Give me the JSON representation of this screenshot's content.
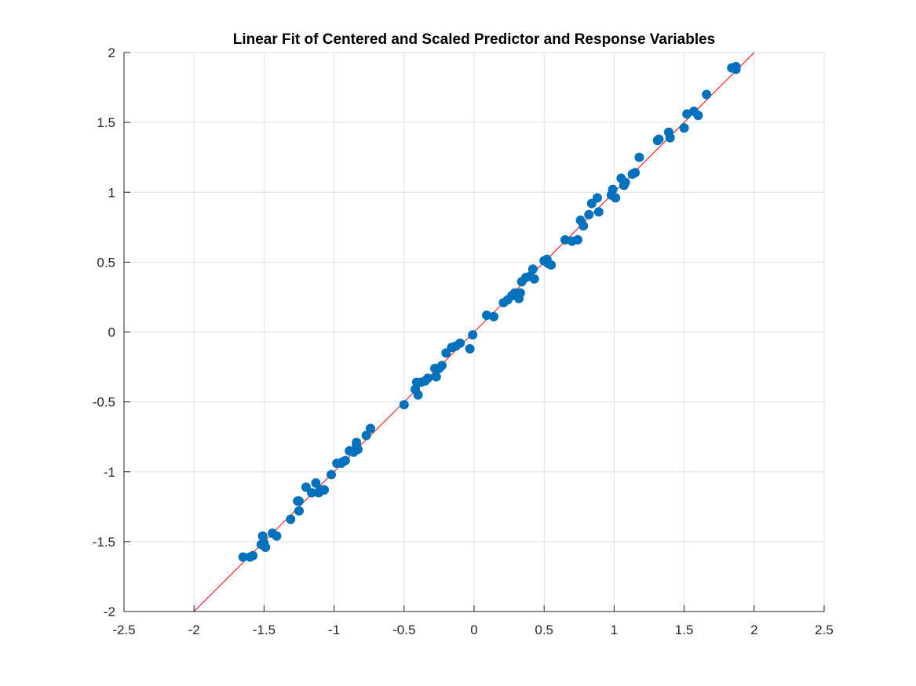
{
  "chart_data": {
    "type": "scatter",
    "title": "Linear Fit of Centered and Scaled Predictor and Response Variables",
    "xlabel": "",
    "ylabel": "",
    "xlim": [
      -2.5,
      2.5
    ],
    "ylim": [
      -2,
      2
    ],
    "xticks": [
      -2.5,
      -2,
      -1.5,
      -1,
      -0.5,
      0,
      0.5,
      1,
      1.5,
      2,
      2.5
    ],
    "xtick_labels": [
      "-2.5",
      "-2",
      "-1.5",
      "-1",
      "-0.5",
      "0",
      "0.5",
      "1",
      "1.5",
      "2",
      "2.5"
    ],
    "yticks": [
      -2,
      -1.5,
      -1,
      -0.5,
      0,
      0.5,
      1,
      1.5,
      2
    ],
    "ytick_labels": [
      "-2",
      "-1.5",
      "-1",
      "-0.5",
      "0",
      "0.5",
      "1",
      "1.5",
      "2"
    ],
    "grid": true,
    "colors": {
      "points": "#0072BD",
      "fit_line": "#FF0000",
      "grid": "#DFDFDF",
      "axes": "#262626"
    },
    "fit_line": {
      "x": [
        -2,
        2
      ],
      "y": [
        -2,
        2
      ]
    },
    "series": [
      {
        "x": [
          -1.65,
          -1.6,
          -1.58,
          -1.52,
          -1.51,
          -1.5,
          -1.49,
          -1.44,
          -1.41,
          -1.31,
          -1.26,
          -1.25,
          -1.25,
          -1.2,
          -1.16,
          -1.13,
          -1.11,
          -1.1,
          -1.07,
          -1.02,
          -0.98,
          -0.95,
          -0.94,
          -0.92,
          -0.89,
          -0.86,
          -0.84,
          -0.84,
          -0.83,
          -0.77,
          -0.74,
          -0.5,
          -0.42,
          -0.41,
          -0.4,
          -0.38,
          -0.35,
          -0.33,
          -0.28,
          -0.27,
          -0.25,
          -0.23,
          -0.2,
          -0.16,
          -0.13,
          -0.1,
          -0.03,
          -0.01,
          0.09,
          0.14,
          0.21,
          0.24,
          0.27,
          0.29,
          0.32,
          0.33,
          0.34,
          0.37,
          0.4,
          0.42,
          0.43,
          0.5,
          0.52,
          0.53,
          0.55,
          0.65,
          0.7,
          0.74,
          0.76,
          0.78,
          0.82,
          0.84,
          0.88,
          0.89,
          0.98,
          0.99,
          1.01,
          1.05,
          1.07,
          1.08,
          1.13,
          1.15,
          1.18,
          1.31,
          1.32,
          1.39,
          1.4,
          1.5,
          1.52,
          1.57,
          1.6,
          1.66,
          1.84,
          1.87,
          1.87
        ],
        "y": [
          -1.61,
          -1.61,
          -1.6,
          -1.52,
          -1.46,
          -1.51,
          -1.54,
          -1.44,
          -1.46,
          -1.34,
          -1.21,
          -1.21,
          -1.28,
          -1.11,
          -1.15,
          -1.08,
          -1.15,
          -1.13,
          -1.13,
          -1.02,
          -0.94,
          -0.94,
          -0.93,
          -0.92,
          -0.85,
          -0.86,
          -0.79,
          -0.81,
          -0.84,
          -0.74,
          -0.69,
          -0.52,
          -0.41,
          -0.36,
          -0.45,
          -0.36,
          -0.35,
          -0.33,
          -0.26,
          -0.32,
          -0.26,
          -0.24,
          -0.15,
          -0.11,
          -0.1,
          -0.08,
          -0.12,
          -0.02,
          0.12,
          0.11,
          0.21,
          0.23,
          0.26,
          0.28,
          0.24,
          0.28,
          0.36,
          0.39,
          0.4,
          0.45,
          0.38,
          0.51,
          0.52,
          0.49,
          0.48,
          0.66,
          0.65,
          0.66,
          0.8,
          0.76,
          0.84,
          0.92,
          0.96,
          0.86,
          0.98,
          1.02,
          0.96,
          1.1,
          1.05,
          1.07,
          1.13,
          1.14,
          1.25,
          1.37,
          1.38,
          1.43,
          1.39,
          1.46,
          1.56,
          1.58,
          1.55,
          1.7,
          1.89,
          1.9,
          1.88
        ]
      }
    ]
  }
}
